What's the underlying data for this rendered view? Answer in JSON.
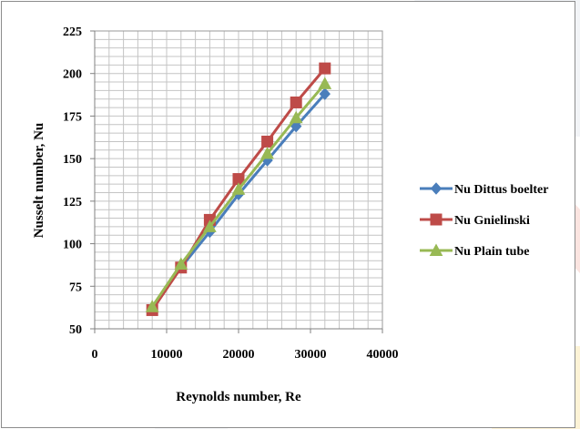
{
  "chart_data": {
    "type": "line",
    "xlabel": "Reynolds number, Re",
    "ylabel": "Nusselt number, Nu",
    "xlim": [
      0,
      40000
    ],
    "ylim": [
      50,
      225
    ],
    "x_ticks": [
      0,
      10000,
      20000,
      30000,
      40000
    ],
    "y_ticks": [
      50,
      75,
      100,
      125,
      150,
      175,
      200,
      225
    ],
    "x_tick_labels": [
      "0",
      "10000",
      "20000",
      "30000",
      "40000"
    ],
    "y_tick_labels": [
      "50",
      "75",
      "100",
      "125",
      "150",
      "175",
      "200",
      "225"
    ],
    "grid": true,
    "legend_position": "right",
    "x": [
      8000,
      12000,
      16000,
      20000,
      24000,
      28000,
      32000
    ],
    "series": [
      {
        "name": "Nu Dittus boelter",
        "marker": "diamond",
        "color": "#4a7ebb",
        "values": [
          62,
          86,
          107,
          129,
          149,
          169,
          188
        ]
      },
      {
        "name": "Nu Gnielinski",
        "marker": "square",
        "color": "#be4b48",
        "values": [
          61,
          86,
          114,
          138,
          160,
          183,
          203
        ]
      },
      {
        "name": "Nu Plain tube",
        "marker": "triangle",
        "color": "#98b954",
        "values": [
          63,
          88,
          110,
          132,
          153,
          174,
          194
        ]
      }
    ]
  }
}
